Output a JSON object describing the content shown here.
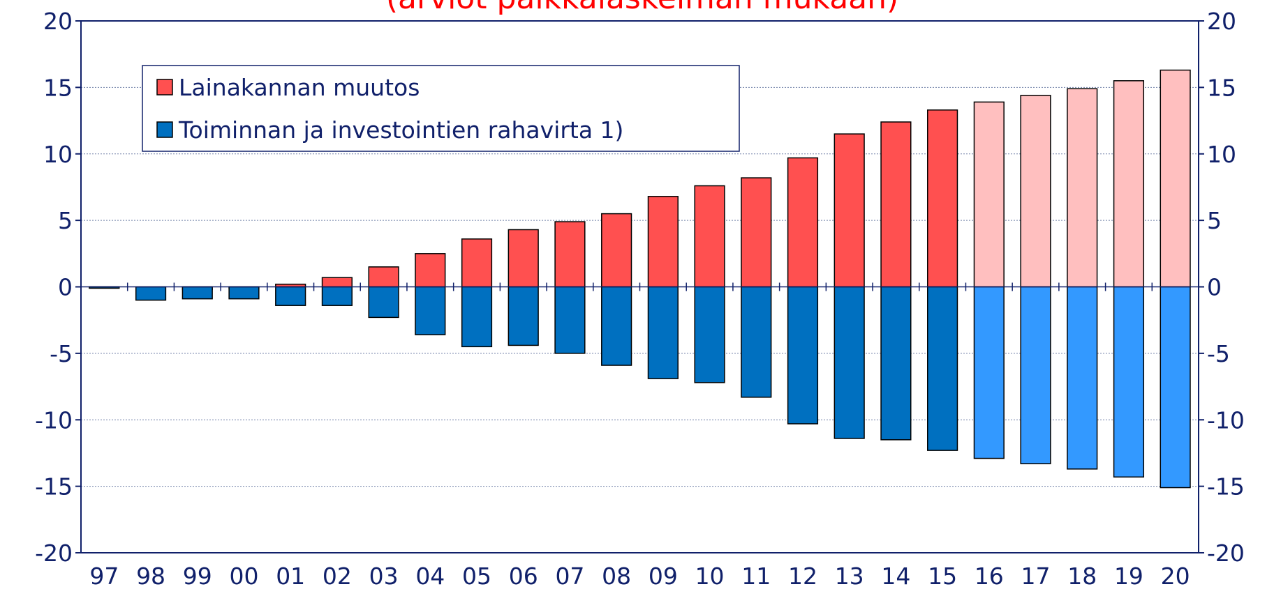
{
  "chart_data": {
    "type": "bar",
    "title": "(arviot palkkalaskelman mukaan)",
    "categories": [
      "97",
      "98",
      "99",
      "00",
      "01",
      "02",
      "03",
      "04",
      "05",
      "06",
      "07",
      "08",
      "09",
      "10",
      "11",
      "12",
      "13",
      "14",
      "15",
      "16",
      "17",
      "18",
      "19",
      "20"
    ],
    "series": [
      {
        "name": "Lainakannan muutos",
        "color": "#ff5050",
        "colors": [
          "#ff5050",
          "#ff5050",
          "#ff5050",
          "#ff5050",
          "#ff5050",
          "#ff5050",
          "#ff5050",
          "#ff5050",
          "#ff5050",
          "#ff5050",
          "#ff5050",
          "#ff5050",
          "#ff5050",
          "#ff5050",
          "#ff5050",
          "#ff5050",
          "#ff5050",
          "#ff5050",
          "#ff5050",
          "#ffbfbf",
          "#ffbfbf",
          "#ffbfbf",
          "#ffbfbf",
          "#ffbfbf"
        ],
        "values": [
          -0.1,
          0,
          -0.2,
          -0.1,
          0.2,
          0.7,
          1.5,
          2.5,
          3.6,
          4.3,
          4.9,
          5.5,
          6.8,
          7.6,
          8.2,
          9.7,
          11.5,
          12.4,
          13.3,
          13.9,
          14.4,
          14.9,
          15.5,
          16.3
        ]
      },
      {
        "name": "Toiminnan ja investointien rahavirta 1)",
        "color": "#0070c0",
        "colors": [
          "#0070c0",
          "#0070c0",
          "#0070c0",
          "#0070c0",
          "#0070c0",
          "#0070c0",
          "#0070c0",
          "#0070c0",
          "#0070c0",
          "#0070c0",
          "#0070c0",
          "#0070c0",
          "#0070c0",
          "#0070c0",
          "#0070c0",
          "#0070c0",
          "#0070c0",
          "#0070c0",
          "#0070c0",
          "#3399ff",
          "#3399ff",
          "#3399ff",
          "#3399ff",
          "#3399ff"
        ],
        "values": [
          -0.1,
          -1.0,
          -0.9,
          -0.9,
          -1.4,
          -1.4,
          -2.3,
          -3.6,
          -4.5,
          -4.4,
          -5.0,
          -5.9,
          -6.9,
          -7.2,
          -8.3,
          -10.3,
          -11.4,
          -11.5,
          -12.3,
          -12.9,
          -13.3,
          -13.7,
          -14.3,
          -15.1
        ]
      }
    ],
    "ylim": [
      -20,
      20
    ],
    "yticks": [
      -20,
      -15,
      -10,
      -5,
      0,
      5,
      10,
      15,
      20
    ],
    "y2lim": [
      -20,
      20
    ],
    "y2ticks": [
      -20,
      -15,
      -10,
      -5,
      0,
      5,
      10,
      15,
      20
    ],
    "grid": true
  }
}
